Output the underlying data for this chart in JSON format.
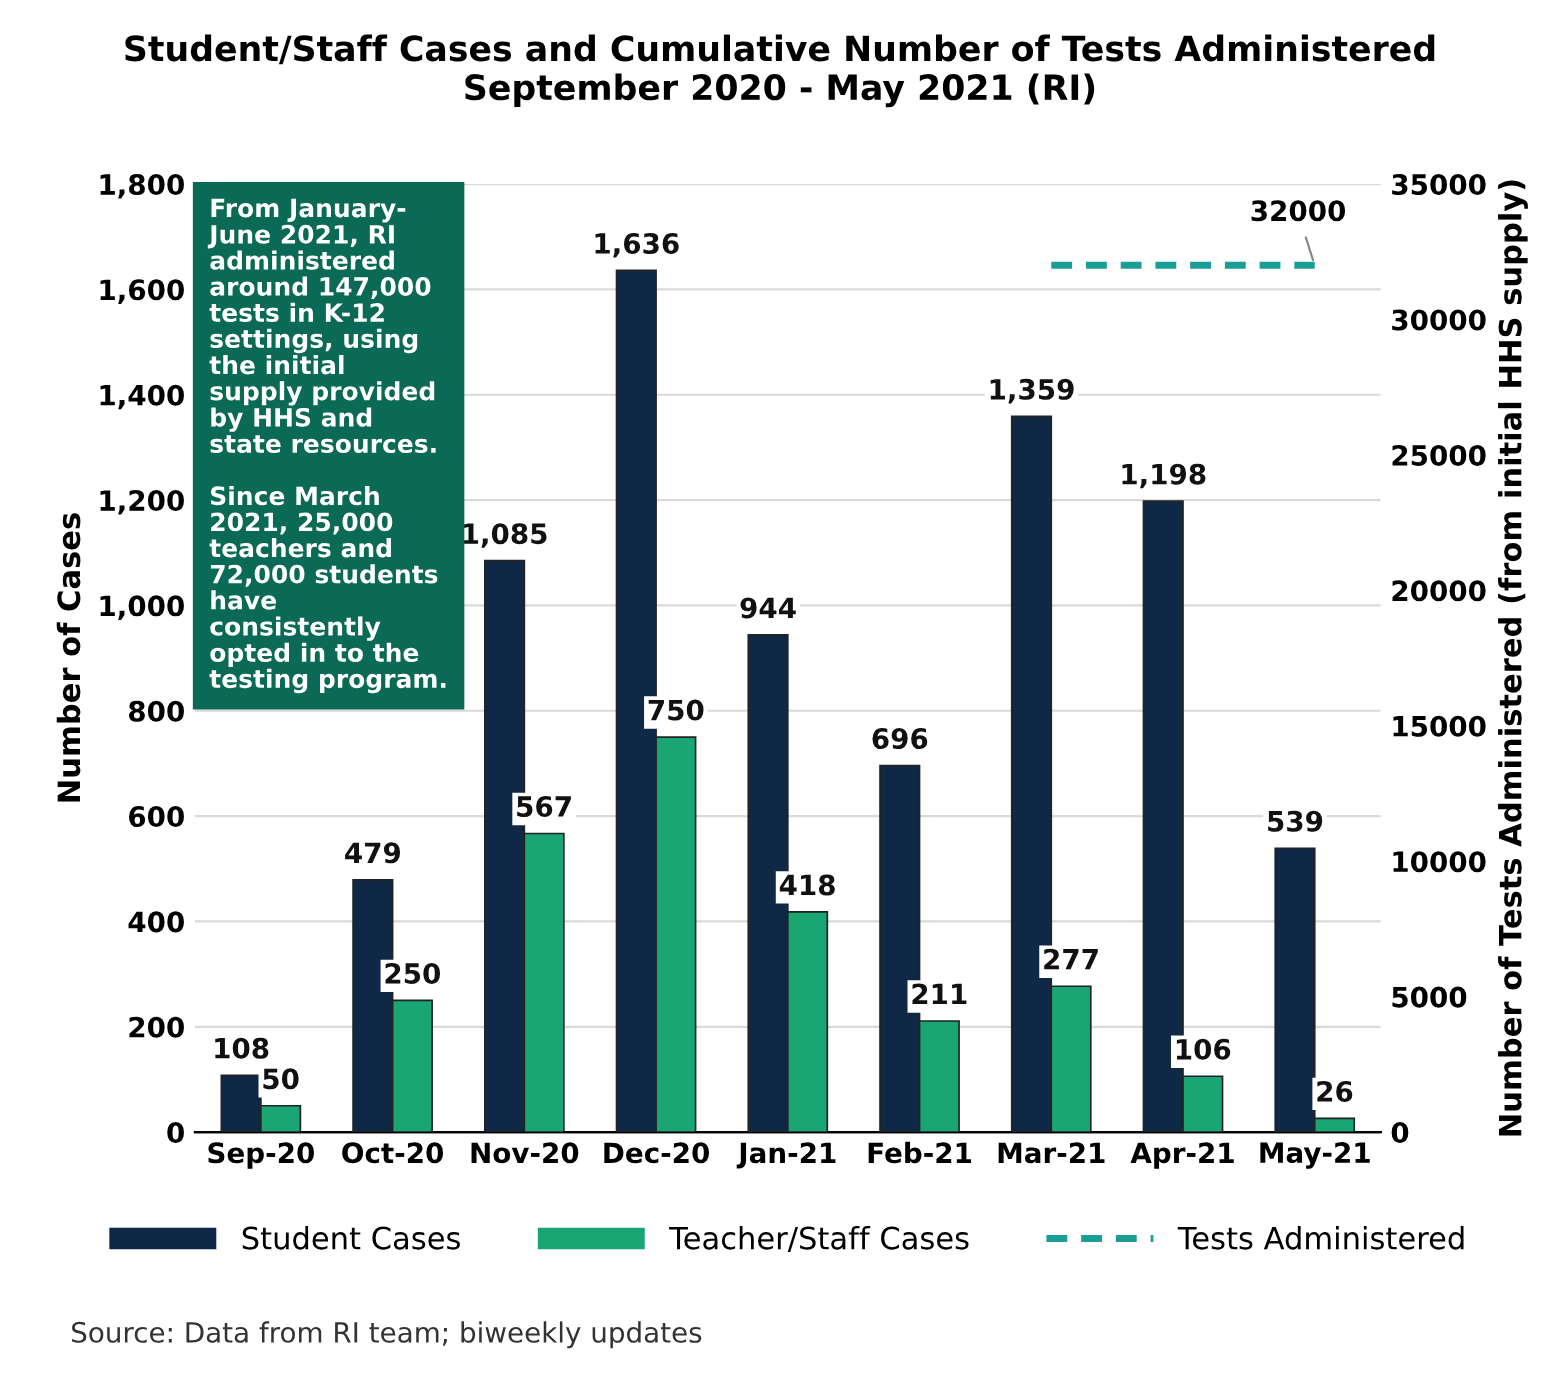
{
  "chart_data": {
    "type": "bar",
    "title": "Student/Staff Cases and Cumulative Number of Tests Administered\nSeptember 2020 - May 2021 (RI)",
    "categories": [
      "Sep-20",
      "Oct-20",
      "Nov-20",
      "Dec-20",
      "Jan-21",
      "Feb-21",
      "Mar-21",
      "Apr-21",
      "May-21"
    ],
    "series": [
      {
        "name": "Student Cases",
        "color": "#0f2846",
        "values": [
          108,
          479,
          1085,
          1636,
          944,
          696,
          1359,
          1198,
          539
        ],
        "value_labels": [
          "108",
          "479",
          "1,085",
          "1,636",
          "944",
          "696",
          "1,359",
          "1,198",
          "539"
        ]
      },
      {
        "name": "Teacher/Staff Cases",
        "color": "#1aa574",
        "values": [
          50,
          250,
          567,
          750,
          418,
          211,
          277,
          106,
          26
        ],
        "value_labels": [
          "50",
          "250",
          "567",
          "750",
          "418",
          "211",
          "277",
          "106",
          "26"
        ]
      },
      {
        "name": "Tests Administered",
        "type": "line",
        "axis": "y2",
        "color": "#1a9e96",
        "line_style": "dashed",
        "marker": "none",
        "values": [
          null,
          null,
          null,
          null,
          null,
          null,
          32000,
          32000,
          32000
        ],
        "value_labels": [
          null,
          null,
          null,
          null,
          null,
          null,
          null,
          null,
          "32000"
        ]
      }
    ],
    "ylabel": "Number of Cases",
    "y2label": "Number of Tests Administered (from initial HHS supply)",
    "ylim": [
      0,
      1800
    ],
    "yticks": [
      0,
      200,
      400,
      600,
      800,
      {
        "value": 1000,
        "label": "1,000"
      },
      {
        "value": 1200,
        "label": "1,200"
      },
      {
        "value": 1400,
        "label": "1,400"
      },
      {
        "value": 1600,
        "label": "1,600"
      },
      {
        "value": 1800,
        "label": "1,800"
      }
    ],
    "y2lim": [
      0,
      35000
    ],
    "y2ticks": [
      0,
      5000,
      10000,
      15000,
      20000,
      25000,
      30000,
      35000
    ],
    "grid": "y",
    "legend": "bottom",
    "annotations": [
      "From January-\nJune 2021, RI\nadministered\naround 147,000\ntests in K-12\nsettings, using\nthe initial\nsupply provided\nby HHS and\nstate resources.\n\nSince March\n2021, 25,000\nteachers and\n72,000 students\nhave\nconsistently\nopted in to the\ntesting program.",
      "Source: Data from RI team; biweekly updates"
    ]
  }
}
